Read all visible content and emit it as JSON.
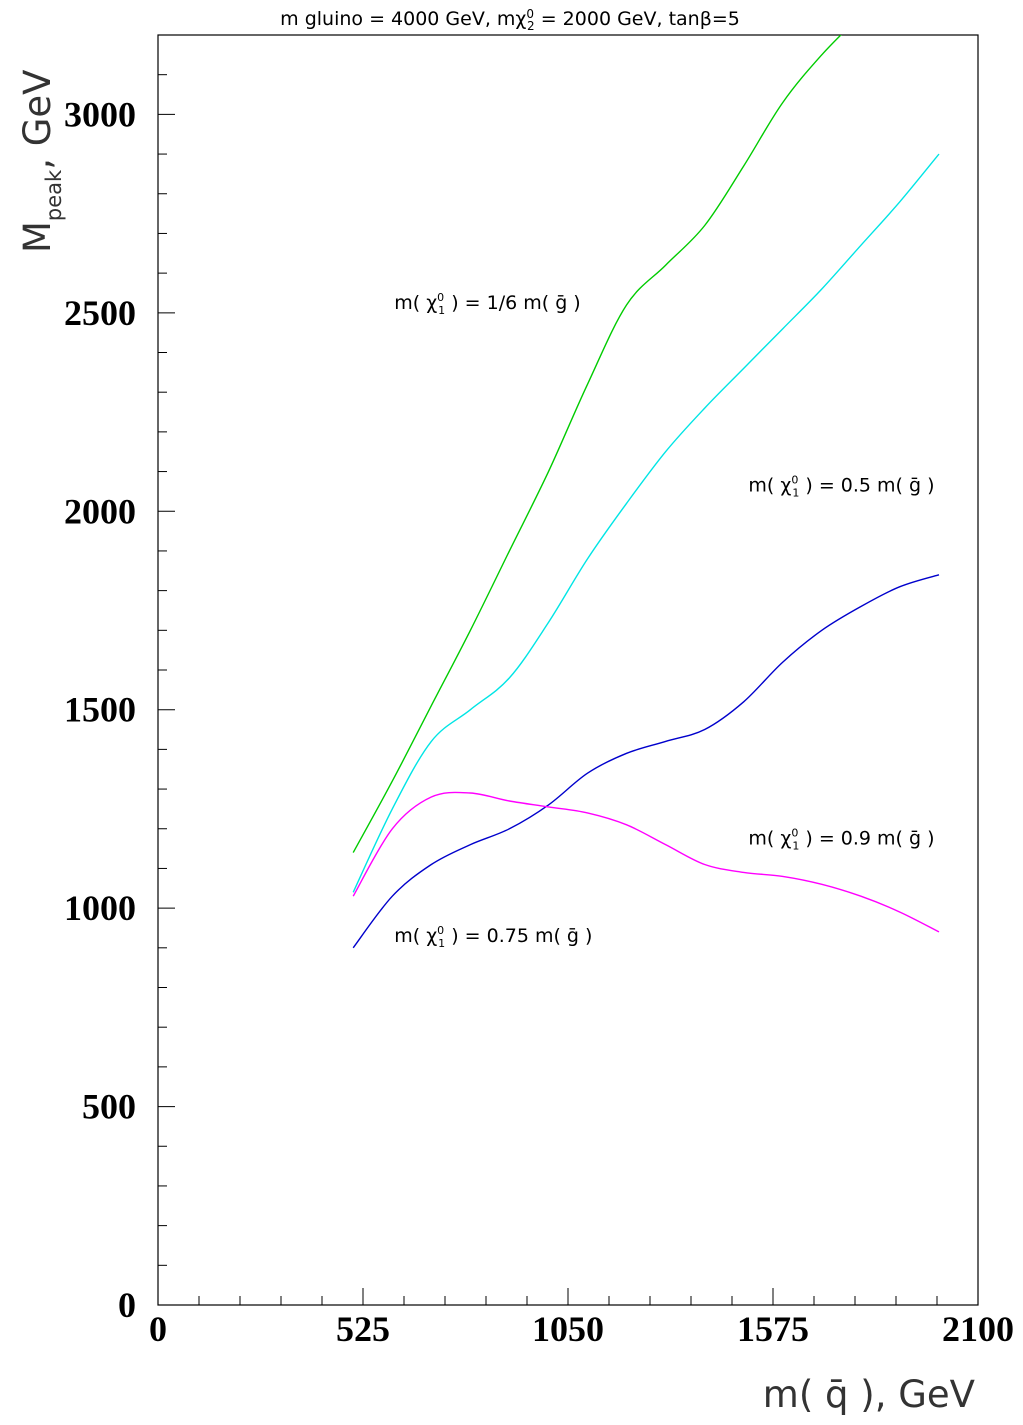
{
  "chart_data": {
    "type": "line",
    "title": "m gluino = 4000 GeV, mχ₂⁰ = 2000 GeV, tanβ=5",
    "title_parts": {
      "pre": "m gluino = 4000 GeV, mχ",
      "sub": "2",
      "sup": "0",
      "post": " = 2000 GeV, tanβ=5"
    },
    "xlabel": "m( q̄ ),  GeV",
    "ylabel": "M",
    "ylabel_sub": "peak",
    "ylabel_unit": ",   GeV",
    "xlim": [
      0,
      2100
    ],
    "ylim": [
      0,
      3200
    ],
    "xticks": [
      0,
      525,
      1050,
      1575,
      2100
    ],
    "yticks": [
      0,
      500,
      1000,
      1500,
      2000,
      2500,
      3000
    ],
    "grid": false,
    "series": [
      {
        "color": "#00cc00",
        "label": "m( χ₁⁰ ) = 1/6 m( ḡ )",
        "x": [
          500,
          600,
          700,
          800,
          900,
          1000,
          1100,
          1200,
          1300,
          1400,
          1500,
          1600,
          1700,
          1800
        ],
        "y": [
          1140,
          1320,
          1510,
          1700,
          1900,
          2100,
          2320,
          2520,
          2620,
          2720,
          2870,
          3030,
          3150,
          3250
        ]
      },
      {
        "color": "#00e5e5",
        "label": "m( χ₁⁰ ) = 0.5 m( ḡ )",
        "x": [
          500,
          600,
          700,
          800,
          900,
          1000,
          1100,
          1200,
          1300,
          1400,
          1500,
          1600,
          1700,
          1800,
          1900,
          2000
        ],
        "y": [
          1040,
          1250,
          1420,
          1500,
          1580,
          1720,
          1880,
          2020,
          2150,
          2260,
          2360,
          2460,
          2560,
          2670,
          2780,
          2900
        ]
      },
      {
        "color": "#0000cc",
        "label": "m( χ₁⁰ ) = 0.75 m( ḡ )",
        "x": [
          500,
          600,
          700,
          800,
          900,
          1000,
          1100,
          1200,
          1300,
          1400,
          1500,
          1600,
          1700,
          1800,
          1900,
          2000
        ],
        "y": [
          900,
          1030,
          1110,
          1160,
          1200,
          1260,
          1340,
          1390,
          1420,
          1450,
          1520,
          1620,
          1700,
          1760,
          1810,
          1840
        ]
      },
      {
        "color": "#ff00ff",
        "label": "m( χ₁⁰ ) = 0.9 m( ḡ )",
        "x": [
          500,
          600,
          700,
          800,
          900,
          1000,
          1100,
          1200,
          1300,
          1400,
          1500,
          1600,
          1700,
          1800,
          1900,
          2000
        ],
        "y": [
          1030,
          1200,
          1280,
          1290,
          1270,
          1255,
          1240,
          1210,
          1160,
          1110,
          1090,
          1080,
          1060,
          1030,
          990,
          940
        ]
      }
    ],
    "annotations": [
      {
        "pre": "m( χ",
        "sub": "1",
        "sup": "0",
        "post": " ) = 1/6 m( ḡ )",
        "x": 605,
        "y": 2510
      },
      {
        "pre": "m( χ",
        "sub": "1",
        "sup": "0",
        "post": " ) = 0.5 m( ḡ )",
        "x": 1512,
        "y": 2050
      },
      {
        "pre": "m( χ",
        "sub": "1",
        "sup": "0",
        "post": " ) = 0.9 m( ḡ )",
        "x": 1512,
        "y": 1160
      },
      {
        "pre": "m( χ",
        "sub": "1",
        "sup": "0",
        "post": " ) = 0.75 m( ḡ )",
        "x": 605,
        "y": 915
      }
    ]
  }
}
